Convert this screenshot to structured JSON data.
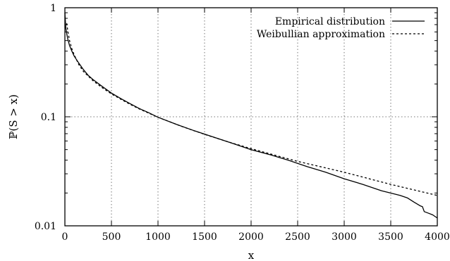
{
  "chart_data": {
    "type": "line",
    "title": "",
    "xlabel": "x",
    "ylabel": "ℙ(S > x)",
    "xlim": [
      0,
      4000
    ],
    "ylim": [
      0.01,
      1
    ],
    "yscale": "log",
    "grid": "dotted, major ticks",
    "legend_position": "top-right",
    "x_ticks": [
      0,
      500,
      1000,
      1500,
      2000,
      2500,
      3000,
      3500,
      4000
    ],
    "x_tick_labels": [
      "0",
      "500",
      "1000",
      "1500",
      "2000",
      "2500",
      "3000",
      "3500",
      "4000"
    ],
    "y_ticks": [
      0.01,
      0.1,
      1
    ],
    "y_tick_labels": [
      "0.01",
      "0.1",
      "1"
    ],
    "series": [
      {
        "name": "Empirical distribution",
        "style": "solid",
        "color": "#000000",
        "x": [
          0,
          5,
          10,
          20,
          30,
          50,
          75,
          100,
          150,
          200,
          250,
          300,
          400,
          500,
          600,
          700,
          800,
          900,
          1000,
          1200,
          1400,
          1600,
          1800,
          2000,
          2200,
          2400,
          2600,
          2800,
          3000,
          3200,
          3400,
          3600,
          3680,
          3750,
          3820,
          3840,
          3860,
          3880,
          3900,
          3950,
          4000
        ],
        "y": [
          0.9,
          0.75,
          0.65,
          0.58,
          0.52,
          0.45,
          0.4,
          0.36,
          0.31,
          0.27,
          0.24,
          0.22,
          0.19,
          0.165,
          0.147,
          0.132,
          0.119,
          0.109,
          0.099,
          0.085,
          0.074,
          0.065,
          0.057,
          0.05,
          0.045,
          0.04,
          0.035,
          0.031,
          0.027,
          0.024,
          0.021,
          0.019,
          0.018,
          0.0165,
          0.0152,
          0.015,
          0.0135,
          0.0133,
          0.0131,
          0.0126,
          0.0118
        ]
      },
      {
        "name": "Weibullian approximation",
        "style": "dashed",
        "color": "#000000",
        "x": [
          20,
          30,
          50,
          75,
          100,
          150,
          200,
          300,
          400,
          500,
          600,
          700,
          800,
          1000,
          1250,
          1500,
          1750,
          2000,
          2500,
          3000,
          3500,
          4000
        ],
        "y": [
          0.72,
          0.62,
          0.5,
          0.42,
          0.37,
          0.3,
          0.26,
          0.215,
          0.185,
          0.162,
          0.145,
          0.13,
          0.118,
          0.099,
          0.082,
          0.069,
          0.059,
          0.051,
          0.039,
          0.031,
          0.024,
          0.019
        ]
      }
    ]
  }
}
